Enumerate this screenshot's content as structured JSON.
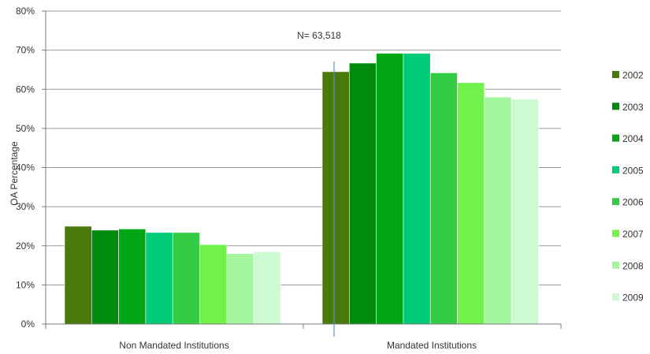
{
  "chart_data": {
    "type": "bar",
    "ylabel": "OA Percentage",
    "ylim": [
      0,
      80
    ],
    "ytick_values": [
      0,
      10,
      20,
      30,
      40,
      50,
      60,
      70,
      80
    ],
    "ytick_labels": [
      "0%",
      "10%",
      "20%",
      "30%",
      "40%",
      "50%",
      "60%",
      "70%",
      "80%"
    ],
    "grid": true,
    "legend_position": "right",
    "categories": [
      "Non Mandated Institutions",
      "Mandated Institutions"
    ],
    "series": [
      {
        "name": "2002",
        "color": "#4a7a0a",
        "values": [
          25,
          64.5
        ]
      },
      {
        "name": "2003",
        "color": "#008a0e",
        "values": [
          24,
          66.7
        ]
      },
      {
        "name": "2004",
        "color": "#00a614",
        "values": [
          24.3,
          69.2
        ]
      },
      {
        "name": "2005",
        "color": "#00cc78",
        "values": [
          23.4,
          69.2
        ]
      },
      {
        "name": "2006",
        "color": "#33cc44",
        "values": [
          23.4,
          64.2
        ]
      },
      {
        "name": "2007",
        "color": "#70f24a",
        "values": [
          20.3,
          61.7
        ]
      },
      {
        "name": "2008",
        "color": "#a3f59e",
        "values": [
          18,
          58
        ]
      },
      {
        "name": "2009",
        "color": "#cdfad0",
        "values": [
          18.5,
          57.5
        ]
      }
    ],
    "annotation": "N= 63,518"
  }
}
